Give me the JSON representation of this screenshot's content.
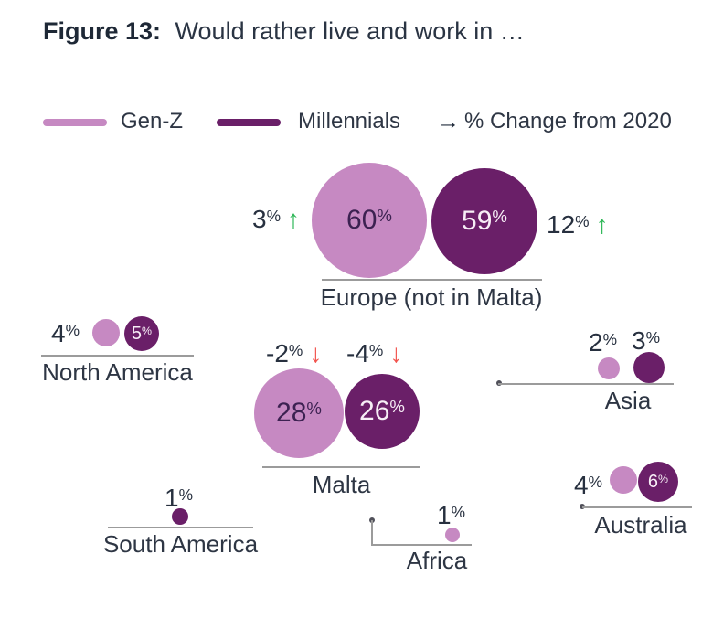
{
  "title": {
    "prefix": "Figure 13:",
    "rest": "Would rather live and work in …"
  },
  "glyphs": {
    "percent": "%",
    "up": "↑",
    "down": "↓",
    "right": "→"
  },
  "legend": {
    "change": "% Change from 2020"
  },
  "colors": {
    "genz": "#c689c2",
    "millennials": "#6a1f68",
    "positive_change": "#2eb757",
    "negative_change": "#f2544e",
    "text": "#222d3d",
    "line": "#9b9b9b"
  },
  "chart_data": {
    "type": "bubble",
    "title": "Figure 13: Would rather live and work in …",
    "units": "%",
    "legend_position": "top",
    "categories": [
      "Europe (not in Malta)",
      "North America",
      "Malta",
      "Asia",
      "Australia",
      "South America",
      "Africa"
    ],
    "series": [
      {
        "name": "Gen-Z",
        "color": "#c689c2",
        "values": [
          60,
          4,
          28,
          2,
          4,
          null,
          1
        ],
        "pct_change_from_2020": [
          3,
          null,
          -2,
          null,
          null,
          null,
          null
        ]
      },
      {
        "name": "Millennials",
        "color": "#6a1f68",
        "values": [
          59,
          5,
          26,
          3,
          6,
          1,
          null
        ],
        "pct_change_from_2020": [
          12,
          null,
          -4,
          null,
          null,
          null,
          null
        ]
      }
    ]
  }
}
